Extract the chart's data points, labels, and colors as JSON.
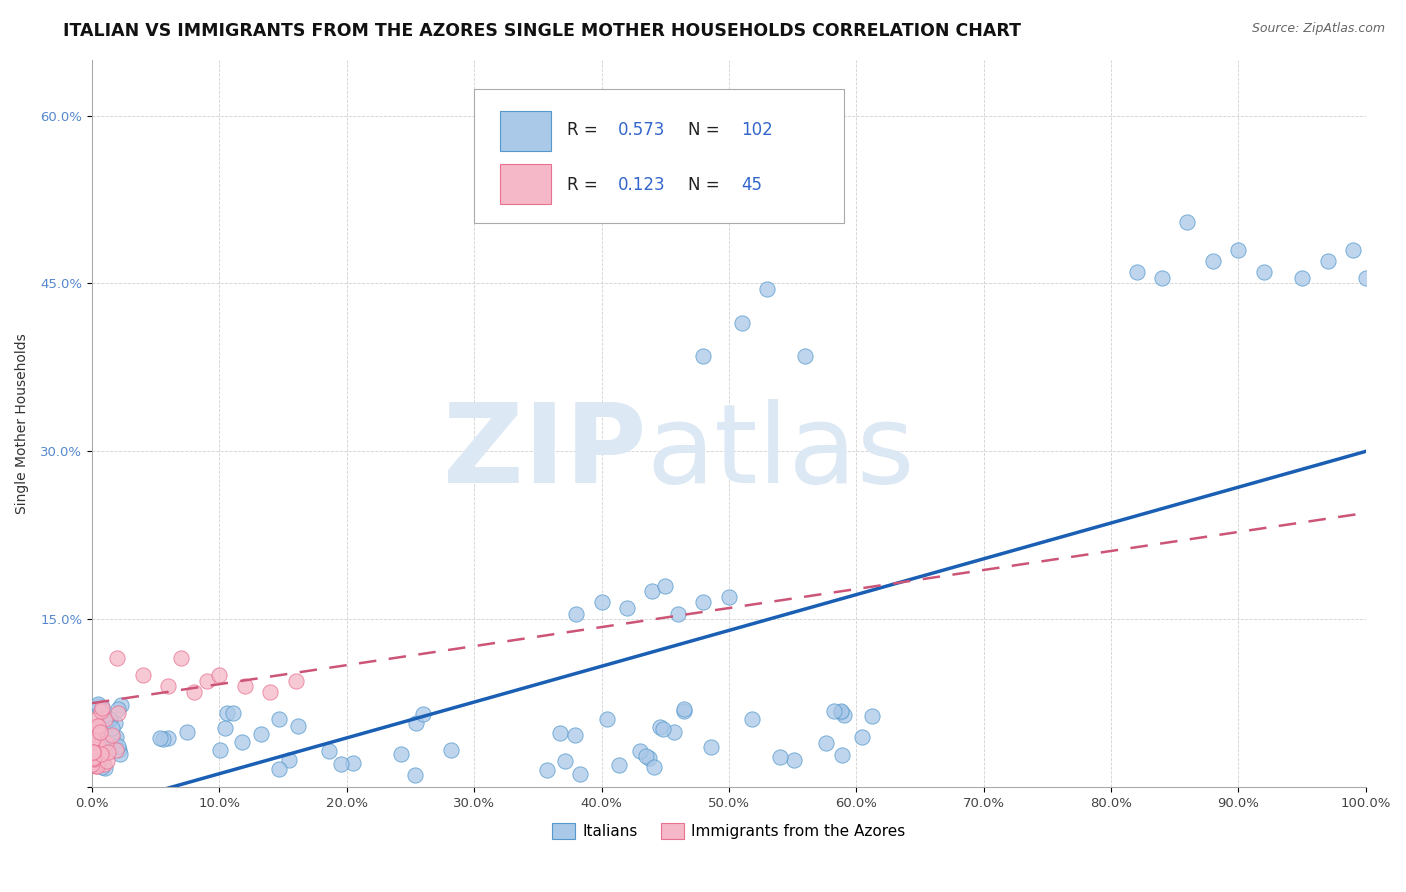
{
  "title": "ITALIAN VS IMMIGRANTS FROM THE AZORES SINGLE MOTHER HOUSEHOLDS CORRELATION CHART",
  "source": "Source: ZipAtlas.com",
  "ylabel": "Single Mother Households",
  "xlim": [
    0.0,
    1.0
  ],
  "ylim": [
    0.0,
    0.65
  ],
  "xticks": [
    0.0,
    0.1,
    0.2,
    0.3,
    0.4,
    0.5,
    0.6,
    0.7,
    0.8,
    0.9,
    1.0
  ],
  "xtick_labels": [
    "0.0%",
    "10.0%",
    "20.0%",
    "30.0%",
    "40.0%",
    "50.0%",
    "60.0%",
    "70.0%",
    "80.0%",
    "90.0%",
    "100.0%"
  ],
  "ytick_labels": [
    "",
    "15.0%",
    "30.0%",
    "45.0%",
    "60.0%"
  ],
  "yticks": [
    0.0,
    0.15,
    0.3,
    0.45,
    0.6
  ],
  "series1_name": "Italians",
  "series1_color": "#aac8e8",
  "series1_edge": "#5599cc",
  "series1_R": 0.573,
  "series1_N": 102,
  "series2_name": "Immigrants from the Azores",
  "series2_color": "#f5b8c8",
  "series2_edge": "#e87090",
  "series2_R": 0.123,
  "series2_N": 45,
  "blue_line_color": "#1a5fb4",
  "pink_line_color": "#cc5577",
  "background_color": "#ffffff",
  "title_color": "#111111",
  "title_fontsize": 12.5,
  "axis_label_fontsize": 10,
  "tick_fontsize": 9.5,
  "blue_slope": 0.32,
  "blue_intercept": -0.02,
  "pink_slope": 0.17,
  "pink_intercept": 0.075
}
